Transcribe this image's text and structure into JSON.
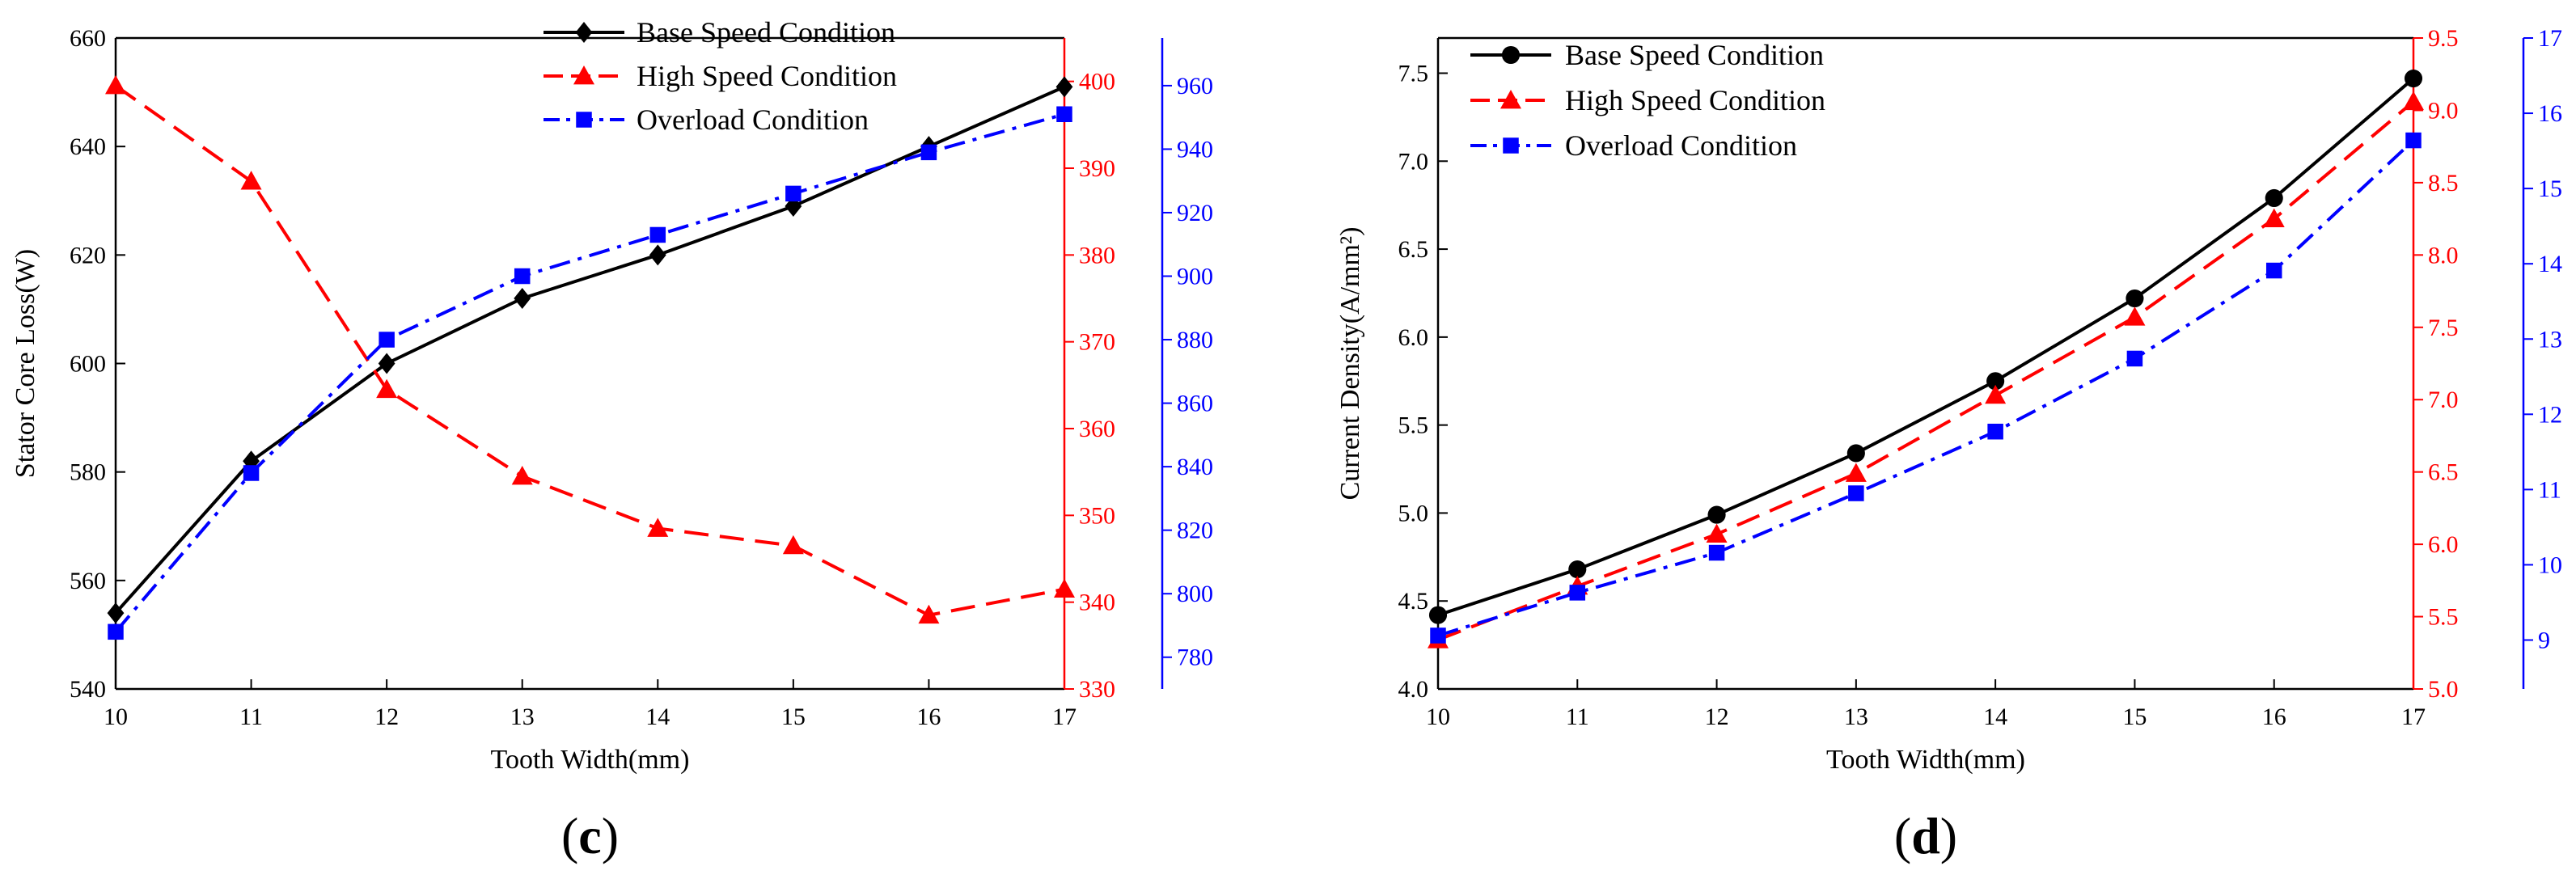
{
  "chart_data": [
    {
      "id": "c",
      "type": "line",
      "panel_label": "c",
      "xlabel": "Tooth Width(mm)",
      "ylabel": "Stator Core Loss(W)",
      "x": [
        10,
        11,
        12,
        13,
        14,
        15,
        16,
        17
      ],
      "xticks": [
        "10",
        "11",
        "12",
        "13",
        "14",
        "15",
        "16",
        "17"
      ],
      "axes": [
        {
          "key": "left",
          "range": [
            540,
            660
          ],
          "ticks": [
            540,
            560,
            580,
            600,
            620,
            640,
            660
          ],
          "color": "#000000"
        },
        {
          "key": "right1",
          "range": [
            330,
            405
          ],
          "ticks": [
            330,
            340,
            350,
            360,
            370,
            380,
            390,
            400
          ],
          "color": "#ff0000"
        },
        {
          "key": "right2",
          "range": [
            770,
            975
          ],
          "ticks": [
            780,
            800,
            820,
            840,
            860,
            880,
            900,
            920,
            940,
            960
          ],
          "color": "#0000ff"
        }
      ],
      "series": [
        {
          "name": "Base Speed Condition",
          "axis": "left",
          "color": "#000000",
          "dash": "solid",
          "marker": "diamond",
          "values": [
            554,
            582,
            600,
            612,
            620,
            629,
            640,
            651
          ]
        },
        {
          "name": "High Speed Condition",
          "axis": "right1",
          "color": "#ff0000",
          "dash": "dashed",
          "marker": "triangle",
          "values": [
            399.5,
            388.5,
            364.5,
            354.5,
            348.5,
            346.5,
            338.5,
            341.5
          ]
        },
        {
          "name": "Overload Condition",
          "axis": "right2",
          "color": "#0000ff",
          "dash": "dashdot",
          "marker": "square",
          "values": [
            788,
            838,
            880,
            900,
            913,
            926,
            939,
            951
          ]
        }
      ]
    },
    {
      "id": "d",
      "type": "line",
      "panel_label": "d",
      "xlabel": "Tooth Width(mm)",
      "ylabel": "Current Density(A/mm²)",
      "x": [
        10,
        11,
        12,
        13,
        14,
        15,
        16,
        17
      ],
      "xticks": [
        "10",
        "11",
        "12",
        "13",
        "14",
        "15",
        "16",
        "17"
      ],
      "axes": [
        {
          "key": "left",
          "range": [
            4.0,
            7.7
          ],
          "ticks": [
            "4.0",
            "4.5",
            "5.0",
            "5.5",
            "6.0",
            "6.5",
            "7.0",
            "7.5"
          ],
          "color": "#000000"
        },
        {
          "key": "right1",
          "range": [
            5.0,
            9.5
          ],
          "ticks": [
            "5.0",
            "5.5",
            "6.0",
            "6.5",
            "7.0",
            "7.5",
            "8.0",
            "8.5",
            "9.0",
            "9.5"
          ],
          "color": "#ff0000"
        },
        {
          "key": "right2",
          "range": [
            8.35,
            17
          ],
          "ticks": [
            "9",
            "10",
            "11",
            "12",
            "13",
            "14",
            "15",
            "16",
            "17"
          ],
          "color": "#0000ff"
        }
      ],
      "series": [
        {
          "name": "Base Speed Condition",
          "axis": "left",
          "color": "#000000",
          "dash": "solid",
          "marker": "circle",
          "values": [
            4.42,
            4.68,
            4.99,
            5.34,
            5.75,
            6.22,
            6.79,
            7.47
          ]
        },
        {
          "name": "High Speed Condition",
          "axis": "right1",
          "color": "#ff0000",
          "dash": "dashed",
          "marker": "triangle",
          "values": [
            5.34,
            5.71,
            6.07,
            6.49,
            7.03,
            7.57,
            8.25,
            9.06
          ]
        },
        {
          "name": "Overload Condition",
          "axis": "right2",
          "color": "#0000ff",
          "dash": "dashdot",
          "marker": "square",
          "values": [
            9.06,
            9.63,
            10.16,
            10.95,
            11.77,
            12.74,
            13.91,
            15.64
          ]
        }
      ]
    }
  ]
}
